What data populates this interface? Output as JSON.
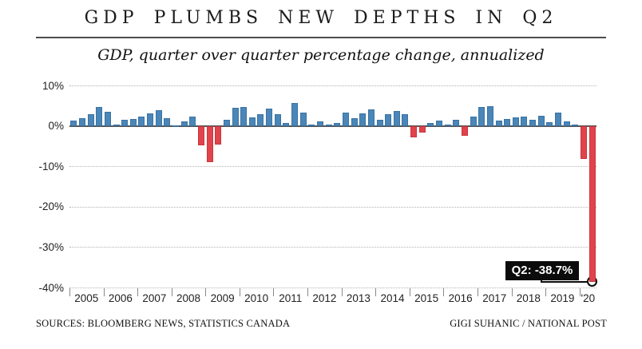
{
  "header": {
    "title": "GDP PLUMBS NEW DEPTHS IN Q2",
    "subtitle": "GDP, quarter over quarter percentage change, annualized"
  },
  "chart_data": {
    "type": "bar",
    "title": "GDP PLUMBS NEW DEPTHS IN Q2",
    "subtitle": "GDP, quarter over quarter percentage change, annualized",
    "unit": "percent, quarter over quarter annualized",
    "ylim": [
      -40,
      10
    ],
    "grid": "horizontal dotted",
    "legend": "none",
    "positive_color": "#4a86b8",
    "negative_color": "#e2434b",
    "quarters": [
      "2005Q1",
      "2005Q2",
      "2005Q3",
      "2005Q4",
      "2006Q1",
      "2006Q2",
      "2006Q3",
      "2006Q4",
      "2007Q1",
      "2007Q2",
      "2007Q3",
      "2007Q4",
      "2008Q1",
      "2008Q2",
      "2008Q3",
      "2008Q4",
      "2009Q1",
      "2009Q2",
      "2009Q3",
      "2009Q4",
      "2010Q1",
      "2010Q2",
      "2010Q3",
      "2010Q4",
      "2011Q1",
      "2011Q2",
      "2011Q3",
      "2011Q4",
      "2012Q1",
      "2012Q2",
      "2012Q3",
      "2012Q4",
      "2013Q1",
      "2013Q2",
      "2013Q3",
      "2013Q4",
      "2014Q1",
      "2014Q2",
      "2014Q3",
      "2014Q4",
      "2015Q1",
      "2015Q2",
      "2015Q3",
      "2015Q4",
      "2016Q1",
      "2016Q2",
      "2016Q3",
      "2016Q4",
      "2017Q1",
      "2017Q2",
      "2017Q3",
      "2017Q4",
      "2018Q1",
      "2018Q2",
      "2018Q3",
      "2018Q4",
      "2019Q1",
      "2019Q2",
      "2019Q3",
      "2019Q4",
      "2020Q1",
      "2020Q2"
    ],
    "values": [
      1.3,
      1.9,
      2.9,
      4.6,
      3.4,
      0.4,
      1.5,
      1.7,
      2.3,
      3.1,
      3.9,
      1.9,
      0.2,
      1.1,
      2.2,
      -4.9,
      -9.0,
      -4.7,
      1.5,
      4.4,
      4.7,
      2.0,
      2.9,
      4.3,
      2.9,
      0.7,
      5.6,
      3.2,
      0.4,
      1.2,
      0.3,
      0.7,
      3.2,
      1.9,
      3.1,
      4.0,
      1.5,
      2.9,
      3.6,
      2.8,
      -2.8,
      -1.7,
      0.8,
      1.4,
      0.4,
      1.6,
      -2.5,
      2.2,
      4.6,
      4.9,
      1.4,
      1.7,
      2.0,
      2.2,
      1.5,
      2.4,
      1.0,
      3.3,
      1.2,
      0.3,
      -8.2,
      -38.7
    ],
    "year_labels": [
      "2005",
      "2006",
      "2007",
      "2008",
      "2009",
      "2010",
      "2011",
      "2012",
      "2013",
      "2014",
      "2015",
      "2016",
      "2017",
      "2018",
      "2019",
      "'20"
    ],
    "yticks": [
      10,
      0,
      -10,
      -20,
      -30,
      -40
    ],
    "ytick_labels": [
      "10%",
      "0%",
      "-10%",
      "-20%",
      "-30%",
      "-40%"
    ],
    "annotation": {
      "label": "Q2: -38.7%",
      "target_quarter": "2020Q2",
      "value": -38.7
    }
  },
  "footer": {
    "sources": "SOURCES: BLOOMBERG NEWS, STATISTICS CANADA",
    "credit": "GIGI SUHANIC / NATIONAL POST"
  }
}
